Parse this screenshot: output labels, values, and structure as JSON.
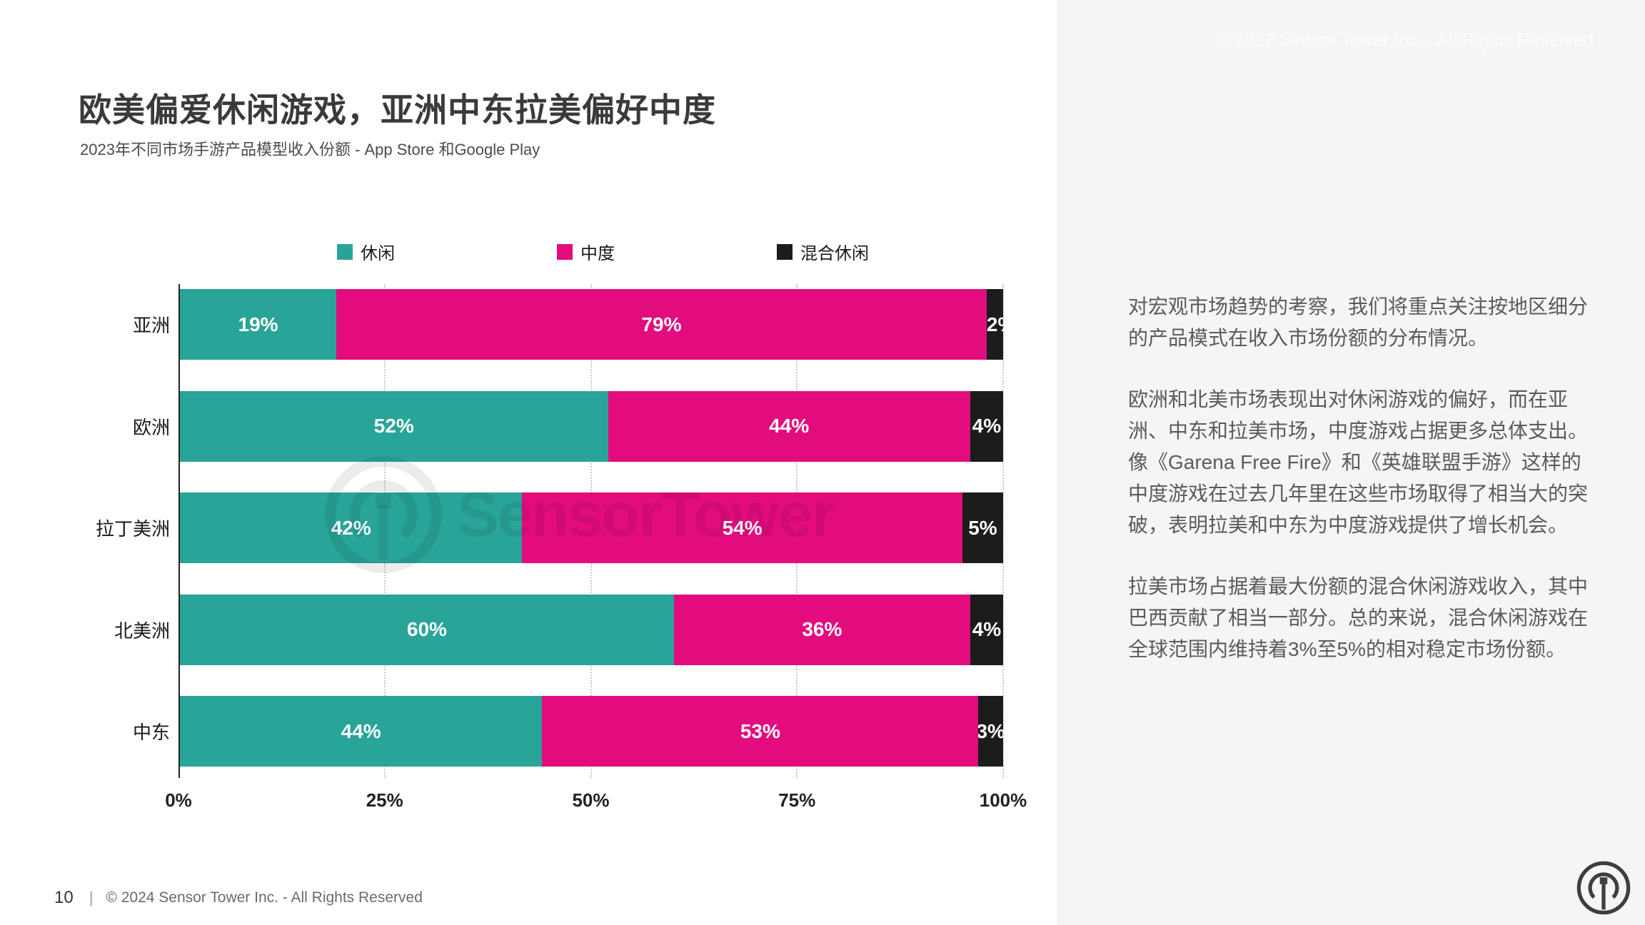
{
  "page": {
    "top_copyright": "© 2022 Sensor Tower Inc. - All Rights Reserved",
    "title": "欧美偏爱休闲游戏，亚洲中东拉美偏好中度",
    "subtitle": "2023年不同市场手游产品模型收入份额 - App Store 和Google Play",
    "watermark": "SensorTower",
    "footer": {
      "page_number": "10",
      "divider": "|",
      "copyright": "© 2024 Sensor Tower Inc. - All Rights Reserved"
    }
  },
  "chart_data": {
    "type": "bar",
    "orientation": "horizontal-stacked",
    "title": "2023年不同市场手游产品模型收入份额 - App Store 和Google Play",
    "categories": [
      "亚洲",
      "欧洲",
      "拉丁美洲",
      "北美洲",
      "中东"
    ],
    "series": [
      {
        "name": "休闲",
        "color": "#29A498",
        "values": [
          19,
          52,
          42,
          60,
          44
        ]
      },
      {
        "name": "中度",
        "color": "#E30C7E",
        "values": [
          79,
          44,
          54,
          36,
          53
        ]
      },
      {
        "name": "混合休闲",
        "color": "#1c1c1c",
        "values": [
          2,
          4,
          5,
          4,
          3
        ]
      }
    ],
    "value_suffix": "%",
    "x_ticks": [
      "0%",
      "25%",
      "50%",
      "75%",
      "100%"
    ],
    "xlim": [
      0,
      100
    ],
    "legend_position": "top",
    "grid": "dotted-vertical-at-25-50-75-100"
  },
  "sidebar_text": {
    "paragraphs": [
      "对宏观市场趋势的考察，我们将重点关注按地区细分的产品模式在收入市场份额的分布情况。",
      "欧洲和北美市场表现出对休闲游戏的偏好，而在亚洲、中东和拉美市场，中度游戏占据更多总体支出。像《Garena Free Fire》和《英雄联盟手游》这样的中度游戏在过去几年里在这些市场取得了相当大的突破，表明拉美和中东为中度游戏提供了增长机会。",
      "拉美市场占据着最大份额的混合休闲游戏收入，其中巴西贡献了相当一部分。总的来说，混合休闲游戏在全球范围内维持着3%至5%的相对稳定市场份额。"
    ]
  }
}
